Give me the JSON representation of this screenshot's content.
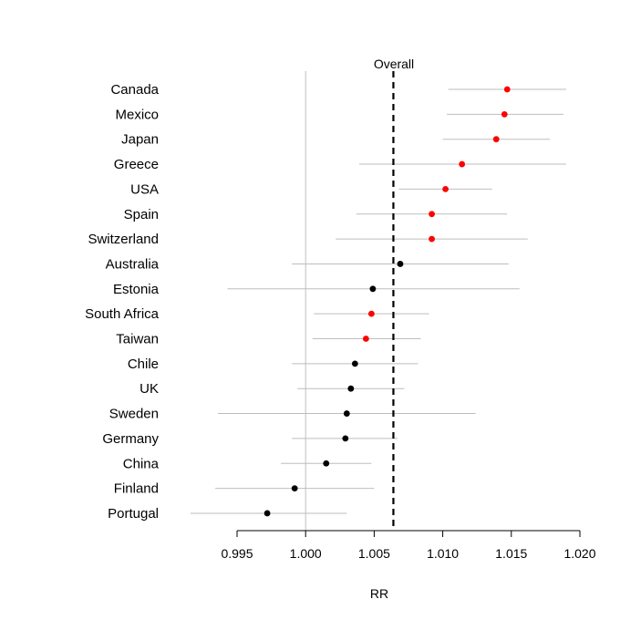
{
  "chart_data": {
    "type": "scatter",
    "subtype": "forest-plot",
    "xlabel": "RR",
    "xlim": [
      0.995,
      1.02
    ],
    "x_ticks": [
      "0.995",
      "1.000",
      "1.005",
      "1.010",
      "1.015",
      "1.020"
    ],
    "grid": false,
    "reference_line": {
      "x": 1.0,
      "style": "solid",
      "color": "#bebebe"
    },
    "overall": {
      "label": "Overall",
      "x": 1.0064,
      "style": "dashed",
      "color": "#000000"
    },
    "colors": {
      "significant": "#ff0000",
      "not_significant": "#000000",
      "ci_line": "#bebebe"
    },
    "rows": [
      {
        "label": "Canada",
        "rr": 1.0147,
        "lo": 1.0104,
        "hi": 1.019,
        "color": "#ff0000"
      },
      {
        "label": "Mexico",
        "rr": 1.0145,
        "lo": 1.0103,
        "hi": 1.0188,
        "color": "#ff0000"
      },
      {
        "label": "Japan",
        "rr": 1.0139,
        "lo": 1.01,
        "hi": 1.0178,
        "color": "#ff0000"
      },
      {
        "label": "Greece",
        "rr": 1.0114,
        "lo": 1.0039,
        "hi": 1.019,
        "color": "#ff0000"
      },
      {
        "label": "USA",
        "rr": 1.0102,
        "lo": 1.0068,
        "hi": 1.0136,
        "color": "#ff0000"
      },
      {
        "label": "Spain",
        "rr": 1.0092,
        "lo": 1.0037,
        "hi": 1.0147,
        "color": "#ff0000"
      },
      {
        "label": "Switzerland",
        "rr": 1.0092,
        "lo": 1.0022,
        "hi": 1.0162,
        "color": "#ff0000"
      },
      {
        "label": "Australia",
        "rr": 1.0069,
        "lo": 0.999,
        "hi": 1.0148,
        "color": "#000000"
      },
      {
        "label": "Estonia",
        "rr": 1.0049,
        "lo": 0.9943,
        "hi": 1.0156,
        "color": "#000000"
      },
      {
        "label": "South Africa",
        "rr": 1.0048,
        "lo": 1.0006,
        "hi": 1.009,
        "color": "#ff0000"
      },
      {
        "label": "Taiwan",
        "rr": 1.0044,
        "lo": 1.0005,
        "hi": 1.0084,
        "color": "#ff0000"
      },
      {
        "label": "Chile",
        "rr": 1.0036,
        "lo": 0.999,
        "hi": 1.0082,
        "color": "#000000"
      },
      {
        "label": "UK",
        "rr": 1.0033,
        "lo": 0.9994,
        "hi": 1.0072,
        "color": "#000000"
      },
      {
        "label": "Sweden",
        "rr": 1.003,
        "lo": 0.9936,
        "hi": 1.0124,
        "color": "#000000"
      },
      {
        "label": "Germany",
        "rr": 1.0029,
        "lo": 0.999,
        "hi": 1.0067,
        "color": "#000000"
      },
      {
        "label": "China",
        "rr": 1.0015,
        "lo": 0.9982,
        "hi": 1.0048,
        "color": "#000000"
      },
      {
        "label": "Finland",
        "rr": 0.9992,
        "lo": 0.9934,
        "hi": 1.005,
        "color": "#000000"
      },
      {
        "label": "Portugal",
        "rr": 0.9972,
        "lo": 0.9916,
        "hi": 1.003,
        "color": "#000000"
      }
    ]
  }
}
